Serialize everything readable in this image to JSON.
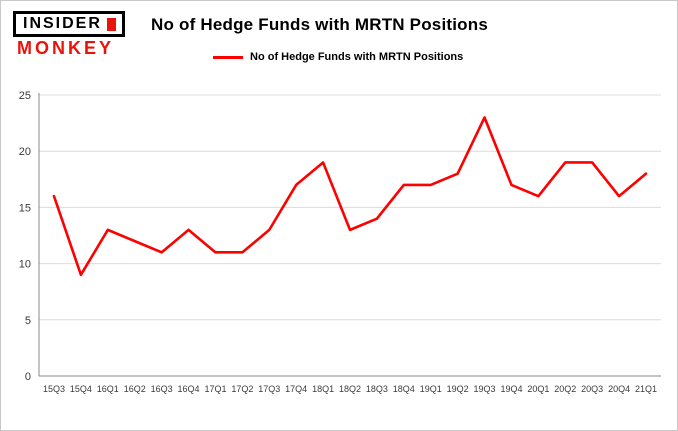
{
  "header": {
    "logo_line1": "INSIDER",
    "logo_line2": "MONKEY",
    "title": "No of Hedge Funds with MRTN Positions"
  },
  "legend": {
    "label": "No of Hedge Funds with MRTN Positions",
    "color": "#fe0000"
  },
  "colors": {
    "line": "#fe0000",
    "grid": "#dcdcdc",
    "axis": "#8a8a8a",
    "tick_text": "#3a3a3a",
    "logo_red": "#e8140c"
  },
  "chart_data": {
    "type": "line",
    "title": "No of Hedge Funds with MRTN Positions",
    "xlabel": "",
    "ylabel": "",
    "categories": [
      "15Q3",
      "15Q4",
      "16Q1",
      "16Q2",
      "16Q3",
      "16Q4",
      "17Q1",
      "17Q2",
      "17Q3",
      "17Q4",
      "18Q1",
      "18Q2",
      "18Q3",
      "18Q4",
      "19Q1",
      "19Q2",
      "19Q3",
      "19Q4",
      "20Q1",
      "20Q2",
      "20Q3",
      "20Q4",
      "21Q1"
    ],
    "series": [
      {
        "name": "No of Hedge Funds with MRTN Positions",
        "color": "#fe0000",
        "values": [
          16,
          9,
          13,
          12,
          11,
          13,
          11,
          11,
          13,
          17,
          19,
          13,
          14,
          17,
          17,
          18,
          23,
          17,
          16,
          19,
          19,
          16,
          18
        ]
      }
    ],
    "ylim": [
      0,
      25
    ],
    "yticks": [
      0,
      5,
      10,
      15,
      20,
      25
    ],
    "grid": true,
    "legend_position": "top"
  }
}
